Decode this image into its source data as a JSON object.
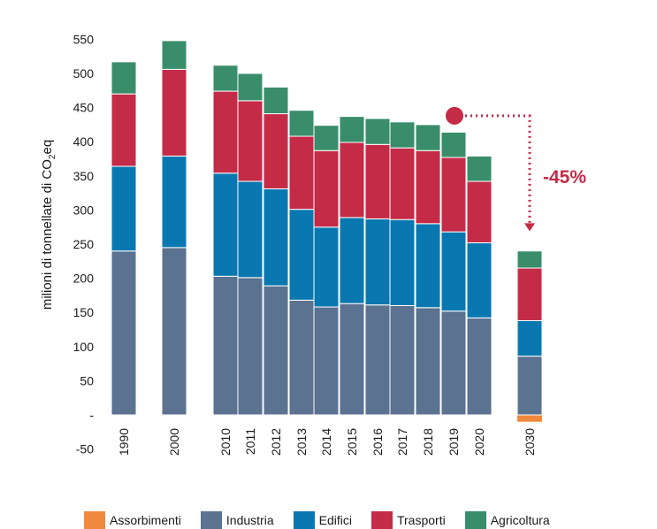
{
  "chart_data": {
    "type": "bar",
    "stacked": true,
    "ylabel_main": "milioni di tonnellate di CO",
    "ylabel_sub": "2",
    "ylabel_tail": "eq",
    "ylim": [
      -50,
      550
    ],
    "yticks": [
      550,
      500,
      450,
      400,
      350,
      300,
      250,
      200,
      150,
      100,
      50,
      0,
      -50
    ],
    "ytick_labels": [
      "550",
      "500",
      "450",
      "400",
      "350",
      "300",
      "250",
      "200",
      "150",
      "100",
      "50",
      "-",
      "-50"
    ],
    "grid": false,
    "legend_position": "bottom",
    "categories": [
      "1990",
      "2000",
      "2010",
      "2011",
      "2012",
      "2013",
      "2014",
      "2015",
      "2016",
      "2017",
      "2018",
      "2019",
      "2020",
      "2030"
    ],
    "series": [
      {
        "name": "Assorbimenti",
        "color": "#f0883e",
        "values": [
          0,
          0,
          0,
          0,
          0,
          0,
          0,
          0,
          0,
          0,
          0,
          0,
          0,
          -10
        ]
      },
      {
        "name": "Industria",
        "color": "#5b7290",
        "values": [
          240,
          245,
          203,
          201,
          189,
          168,
          158,
          163,
          161,
          160,
          157,
          152,
          142,
          86
        ]
      },
      {
        "name": "Edifici",
        "color": "#0a78b0",
        "values": [
          124,
          134,
          151,
          141,
          142,
          133,
          117,
          126,
          126,
          126,
          123,
          116,
          110,
          52
        ]
      },
      {
        "name": "Trasporti",
        "color": "#c42b47",
        "values": [
          106,
          127,
          120,
          118,
          110,
          107,
          112,
          110,
          109,
          105,
          107,
          109,
          90,
          77
        ]
      },
      {
        "name": "Agricoltura",
        "color": "#3a8d6a",
        "values": [
          47,
          42,
          38,
          40,
          39,
          38,
          37,
          38,
          38,
          38,
          38,
          37,
          37,
          25
        ]
      }
    ],
    "annotation": {
      "label": "-45%",
      "color": "#c42b47",
      "from_category": "2019",
      "from_value": 438,
      "to_category": "2030",
      "to_value": 265
    }
  }
}
